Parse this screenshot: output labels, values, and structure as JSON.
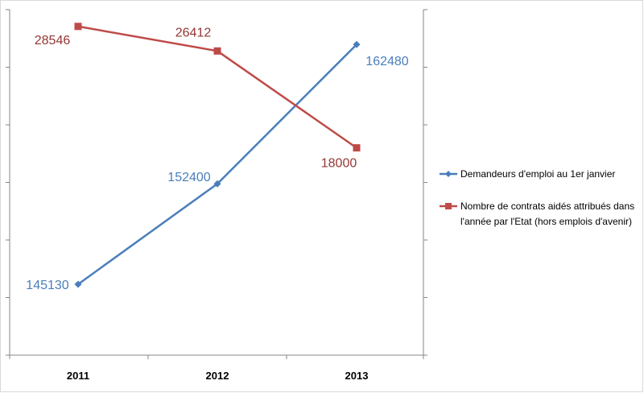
{
  "chart_data": {
    "type": "line",
    "title": "",
    "xlabel": "",
    "ylabel": "",
    "categories": [
      "2011",
      "2012",
      "2013"
    ],
    "grid": false,
    "legend_position": "right",
    "dual_axis": true,
    "series": [
      {
        "name": "Demandeurs d'emploi au 1er janvier",
        "values": [
          145130,
          152400,
          162480
        ],
        "labels": [
          "145130",
          "152400",
          "162480"
        ],
        "axis": "secondary",
        "color": "#4a7ebb",
        "marker": "diamond",
        "ylim": [
          140000,
          165000
        ]
      },
      {
        "name": "Nombre de contrats aidés attribués dans l'année par l'Etat (hors emplois d'avenir)",
        "legend_lines": [
          "Nombre de contrats aidés attribués dans",
          "l'année par l'Etat (hors emplois d'avenir)"
        ],
        "values": [
          28546,
          26412,
          18000
        ],
        "labels": [
          "28546",
          "26412",
          "18000"
        ],
        "axis": "primary",
        "color": "#be4b48",
        "label_color": "#943634",
        "marker": "square",
        "ylim": [
          0,
          30000
        ]
      }
    ]
  }
}
